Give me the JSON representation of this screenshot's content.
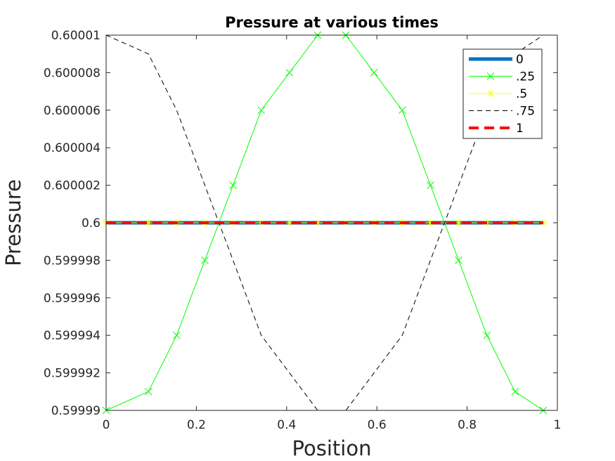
{
  "chart_data": {
    "type": "line",
    "title": "Pressure at various times",
    "xlabel": "Position",
    "ylabel": "Pressure",
    "xlim": [
      0,
      1
    ],
    "ylim": [
      0.59999,
      0.60001
    ],
    "x_ticks": [
      0,
      0.2,
      0.4,
      0.6,
      0.8,
      1
    ],
    "x_tick_labels": [
      "0",
      "0.2",
      "0.4",
      "0.6",
      "0.8",
      "1"
    ],
    "y_ticks": [
      0.59999,
      0.599992,
      0.599994,
      0.599996,
      0.599998,
      0.6,
      0.600002,
      0.600004,
      0.600006,
      0.600008,
      0.60001
    ],
    "y_tick_labels": [
      "0.59999",
      "0.599992",
      "0.599994",
      "0.599996",
      "0.599998",
      "0.6",
      "0.600002",
      "0.600004",
      "0.600006",
      "0.600008",
      "0.60001"
    ],
    "grid": false,
    "legend_position": "top-right",
    "x": [
      0,
      0.0625,
      0.125,
      0.1875,
      0.25,
      0.3125,
      0.375,
      0.4375,
      0.5,
      0.5625,
      0.625,
      0.6875,
      0.75,
      0.8125,
      0.875,
      0.9375,
      1.0
    ],
    "series": [
      {
        "name": "0",
        "color": "#0072BD",
        "style": "solid-thick",
        "marker": "none",
        "x": [
          0,
          0.03125,
          0.09375,
          0.15625,
          0.21875,
          0.28125,
          0.34375,
          0.40625,
          0.46875,
          0.53125,
          0.59375,
          0.65625,
          0.71875,
          0.78125,
          0.84375,
          0.90625,
          0.96875
        ],
        "values": [
          0.6,
          0.6,
          0.6,
          0.6,
          0.6,
          0.6,
          0.6,
          0.6,
          0.6,
          0.6,
          0.6,
          0.6,
          0.6,
          0.6,
          0.6,
          0.6,
          0.6
        ]
      },
      {
        "name": ".25",
        "color": "#00FF00",
        "style": "solid",
        "marker": "x",
        "x": [
          0,
          0.09375,
          0.15625,
          0.21875,
          0.28125,
          0.34375,
          0.40625,
          0.46875,
          0.53125,
          0.59375,
          0.65625,
          0.71875,
          0.78125,
          0.84375,
          0.90625,
          0.96875
        ],
        "values": [
          0.59999,
          0.599991,
          0.599994,
          0.599998,
          0.600002,
          0.600006,
          0.600008,
          0.60001,
          0.60001,
          0.600008,
          0.600006,
          0.600002,
          0.599998,
          0.599994,
          0.599991,
          0.59999
        ]
      },
      {
        "name": ".5",
        "color": "#FFFF00",
        "style": "solid",
        "marker": "asterisk",
        "x": [
          0,
          0.09375,
          0.15625,
          0.21875,
          0.28125,
          0.34375,
          0.40625,
          0.46875,
          0.53125,
          0.59375,
          0.65625,
          0.71875,
          0.78125,
          0.84375,
          0.90625,
          0.96875
        ],
        "values": [
          0.6,
          0.6,
          0.6,
          0.6,
          0.6,
          0.6,
          0.6,
          0.6,
          0.6,
          0.6,
          0.6,
          0.6,
          0.6,
          0.6,
          0.6,
          0.6
        ]
      },
      {
        "name": ".75",
        "color": "#000000",
        "style": "dashed",
        "marker": "none",
        "x": [
          0,
          0.09375,
          0.15625,
          0.21875,
          0.28125,
          0.34375,
          0.40625,
          0.46875,
          0.53125,
          0.59375,
          0.65625,
          0.71875,
          0.78125,
          0.84375,
          0.90625,
          0.96875
        ],
        "values": [
          0.60001,
          0.600009,
          0.600006,
          0.600002,
          0.599998,
          0.599994,
          0.599992,
          0.59999,
          0.59999,
          0.599992,
          0.599994,
          0.599998,
          0.600002,
          0.600006,
          0.600009,
          0.60001
        ]
      },
      {
        "name": "1",
        "color": "#FF0000",
        "style": "dashed-thick",
        "marker": "none",
        "x": [
          0,
          0.09375,
          0.15625,
          0.21875,
          0.28125,
          0.34375,
          0.40625,
          0.46875,
          0.53125,
          0.59375,
          0.65625,
          0.71875,
          0.78125,
          0.84375,
          0.90625,
          0.96875
        ],
        "values": [
          0.6,
          0.6,
          0.6,
          0.6,
          0.6,
          0.6,
          0.6,
          0.6,
          0.6,
          0.6,
          0.6,
          0.6,
          0.6,
          0.6,
          0.6,
          0.6
        ]
      }
    ]
  }
}
